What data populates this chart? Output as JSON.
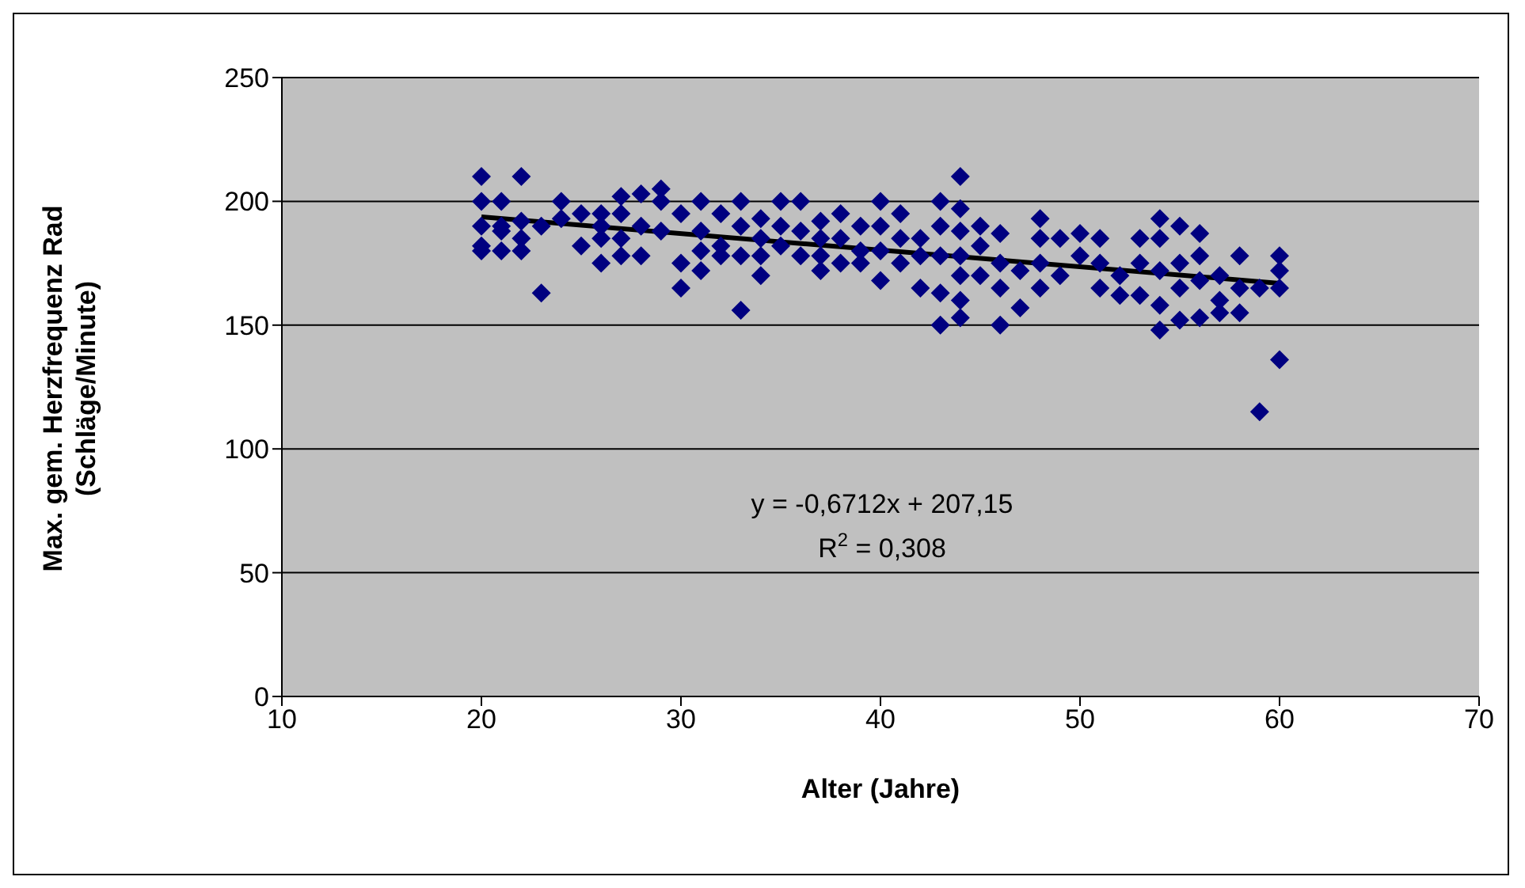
{
  "chart_data": {
    "type": "scatter",
    "xlabel": "Alter (Jahre)",
    "ylabel": "Max. gem. Herzfrequenz Rad\n(Schläge/Minute)",
    "xlim": [
      10,
      70
    ],
    "xticks": [
      10,
      20,
      30,
      40,
      50,
      60,
      70
    ],
    "ylim": [
      0,
      250
    ],
    "yticks": [
      0,
      50,
      100,
      150,
      200,
      250
    ],
    "grid": "y",
    "legend": false,
    "marker": "diamond",
    "annotations": [
      "y = -0,6712x + 207,15",
      "R$^{2}$ = 0,308"
    ],
    "series": [
      {
        "type": "scatter",
        "color": "#000080",
        "x": [
          20,
          20,
          20,
          20,
          20,
          21,
          21,
          21,
          21,
          22,
          22,
          22,
          22,
          23,
          23,
          24,
          24,
          25,
          25,
          26,
          26,
          26,
          26,
          27,
          27,
          27,
          27,
          28,
          28,
          28,
          29,
          29,
          29,
          30,
          30,
          30,
          31,
          31,
          31,
          31,
          32,
          32,
          32,
          33,
          33,
          33,
          33,
          34,
          34,
          34,
          34,
          35,
          35,
          35,
          36,
          36,
          36,
          37,
          37,
          37,
          37,
          38,
          38,
          38,
          39,
          39,
          39,
          40,
          40,
          40,
          40,
          41,
          41,
          41,
          42,
          42,
          42,
          43,
          43,
          43,
          43,
          43,
          44,
          44,
          44,
          44,
          44,
          44,
          44,
          45,
          45,
          45,
          46,
          46,
          46,
          46,
          47,
          47,
          48,
          48,
          48,
          48,
          49,
          49,
          50,
          50,
          51,
          51,
          51,
          52,
          52,
          53,
          53,
          53,
          54,
          54,
          54,
          54,
          54,
          55,
          55,
          55,
          55,
          56,
          56,
          56,
          56,
          57,
          57,
          57,
          58,
          58,
          58,
          59,
          59,
          60,
          60,
          60,
          60
        ],
        "values": [
          210,
          200,
          190,
          182,
          180,
          200,
          190,
          180,
          188,
          210,
          192,
          185,
          180,
          163,
          190,
          200,
          193,
          195,
          182,
          195,
          185,
          175,
          190,
          202,
          195,
          185,
          178,
          203,
          190,
          178,
          205,
          200,
          188,
          195,
          175,
          165,
          200,
          188,
          180,
          172,
          195,
          182,
          178,
          200,
          190,
          178,
          156,
          193,
          185,
          178,
          170,
          200,
          190,
          182,
          200,
          188,
          178,
          192,
          185,
          178,
          172,
          195,
          185,
          175,
          190,
          180,
          175,
          200,
          190,
          180,
          168,
          195,
          185,
          175,
          185,
          178,
          165,
          200,
          190,
          178,
          163,
          150,
          210,
          197,
          188,
          178,
          170,
          160,
          153,
          190,
          182,
          170,
          187,
          175,
          165,
          150,
          172,
          157,
          193,
          185,
          175,
          165,
          185,
          170,
          187,
          178,
          185,
          175,
          165,
          170,
          162,
          185,
          175,
          162,
          193,
          185,
          172,
          158,
          148,
          190,
          175,
          165,
          152,
          187,
          178,
          168,
          153,
          170,
          160,
          155,
          178,
          165,
          155,
          165,
          115,
          178,
          172,
          165,
          136
        ]
      },
      {
        "type": "line",
        "color": "#000000",
        "marker": "none",
        "x": [
          20,
          60
        ],
        "values": [
          193.7,
          166.9
        ]
      }
    ]
  }
}
